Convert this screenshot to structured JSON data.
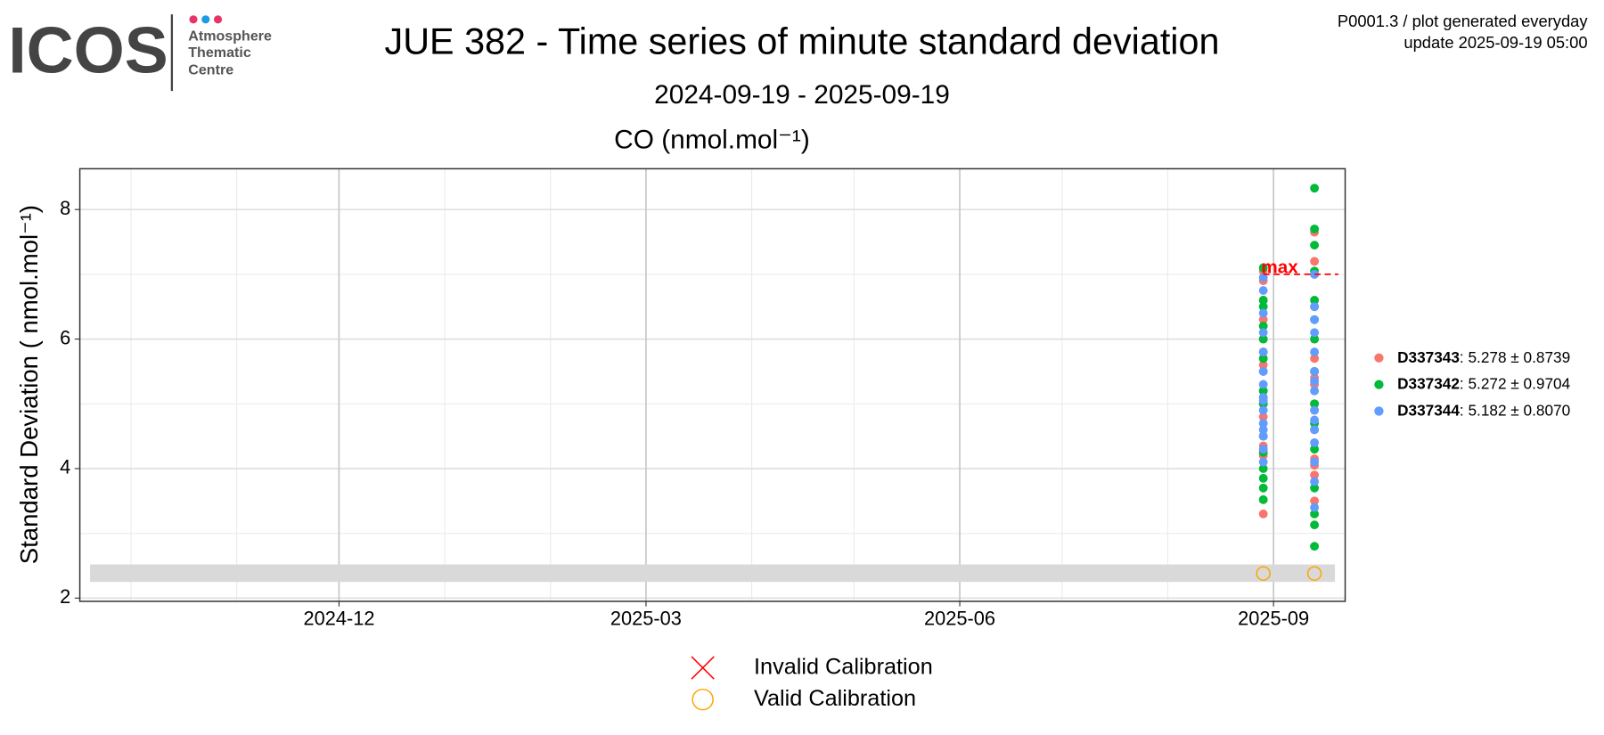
{
  "header": {
    "logo": "ICOS",
    "logo_lines": [
      "Atmosphere",
      "Thematic",
      "Centre"
    ],
    "info": [
      "P0001.3 / plot generated everyday",
      "update  2025-09-19 05:00"
    ]
  },
  "chart_data": {
    "type": "scatter",
    "title": "JUE 382 - Time series of minute standard deviation",
    "subtitle": "2024-09-19 - 2025-09-19",
    "panel_title": "CO (nmol.mol⁻¹)",
    "y_label": "Standard Deviation ( nmol.mol⁻¹)",
    "xlim": [
      "2024-09-16",
      "2025-09-22"
    ],
    "xticks": [
      {
        "value": "2024-12-01",
        "label": "2024-12"
      },
      {
        "value": "2025-03-01",
        "label": "2025-03"
      },
      {
        "value": "2025-06-01",
        "label": "2025-06"
      },
      {
        "value": "2025-09-01",
        "label": "2025-09"
      }
    ],
    "x_minor_ticks": [
      "2024-10-01",
      "2024-11-01",
      "2025-01-01",
      "2025-02-01",
      "2025-04-01",
      "2025-05-01",
      "2025-07-01",
      "2025-08-01"
    ],
    "ylim": [
      1.95,
      8.63
    ],
    "yticks": [
      2,
      4,
      6,
      8
    ],
    "y_minor_ticks": [
      3,
      5,
      7
    ],
    "grid": true,
    "reference_band": {
      "x": [
        "2024-09-19",
        "2025-09-19"
      ],
      "values": [
        2.25,
        2.52
      ],
      "color": "#d9d9d9"
    },
    "max_line": {
      "label": "max",
      "value": 7.0,
      "x": [
        "2025-08-29",
        "2025-09-20"
      ],
      "color": "#ff0000"
    },
    "series": [
      {
        "name": "D337343",
        "legend_label": ": 5.278 ± 0.8739",
        "color": "#F8766D",
        "x": [
          "2025-08-29",
          "2025-08-29",
          "2025-08-29",
          "2025-08-29",
          "2025-08-29",
          "2025-08-29",
          "2025-08-29",
          "2025-08-29",
          "2025-08-29",
          "2025-08-29",
          "2025-08-29",
          "2025-08-29",
          "2025-08-29",
          "2025-08-29",
          "2025-08-29",
          "2025-09-13",
          "2025-09-13",
          "2025-09-13",
          "2025-09-13",
          "2025-09-13",
          "2025-09-13",
          "2025-09-13",
          "2025-09-13",
          "2025-09-13",
          "2025-09-13",
          "2025-09-13",
          "2025-09-13",
          "2025-09-13",
          "2025-09-13",
          "2025-09-13"
        ],
        "values": [
          3.3,
          4.2,
          4.5,
          4.8,
          5.0,
          5.2,
          5.5,
          5.8,
          6.0,
          6.3,
          6.6,
          6.9,
          7.05,
          4.35,
          5.6,
          3.5,
          4.05,
          4.15,
          4.6,
          5.0,
          5.4,
          5.7,
          6.0,
          6.5,
          7.0,
          7.2,
          7.65,
          4.9,
          5.3,
          3.9
        ]
      },
      {
        "name": "D337342",
        "legend_label": ": 5.272 ± 0.9704",
        "color": "#00BA38",
        "x": [
          "2025-08-29",
          "2025-08-29",
          "2025-08-29",
          "2025-08-29",
          "2025-08-29",
          "2025-08-29",
          "2025-08-29",
          "2025-08-29",
          "2025-08-29",
          "2025-08-29",
          "2025-08-29",
          "2025-08-29",
          "2025-08-29",
          "2025-08-29",
          "2025-08-29",
          "2025-09-13",
          "2025-09-13",
          "2025-09-13",
          "2025-09-13",
          "2025-09-13",
          "2025-09-13",
          "2025-09-13",
          "2025-09-13",
          "2025-09-13",
          "2025-09-13",
          "2025-09-13",
          "2025-09-13",
          "2025-09-13",
          "2025-09-13",
          "2025-09-13"
        ],
        "values": [
          3.52,
          3.7,
          3.85,
          4.0,
          4.5,
          5.0,
          5.1,
          5.2,
          5.7,
          6.0,
          6.2,
          6.5,
          6.6,
          7.1,
          4.25,
          2.8,
          3.13,
          3.3,
          3.7,
          4.3,
          4.7,
          5.0,
          5.5,
          6.0,
          6.3,
          6.6,
          7.05,
          7.45,
          7.7,
          8.33
        ]
      },
      {
        "name": "D337344",
        "legend_label": ": 5.182 ± 0.8070",
        "color": "#619CFF",
        "x": [
          "2025-08-29",
          "2025-08-29",
          "2025-08-29",
          "2025-08-29",
          "2025-08-29",
          "2025-08-29",
          "2025-08-29",
          "2025-08-29",
          "2025-08-29",
          "2025-08-29",
          "2025-08-29",
          "2025-08-29",
          "2025-08-29",
          "2025-08-29",
          "2025-08-29",
          "2025-09-13",
          "2025-09-13",
          "2025-09-13",
          "2025-09-13",
          "2025-09-13",
          "2025-09-13",
          "2025-09-13",
          "2025-09-13",
          "2025-09-13",
          "2025-09-13",
          "2025-09-13",
          "2025-09-13",
          "2025-09-13",
          "2025-09-13",
          "2025-09-13"
        ],
        "values": [
          4.1,
          4.3,
          4.5,
          4.7,
          4.9,
          5.1,
          5.3,
          5.5,
          5.8,
          6.1,
          6.4,
          6.75,
          6.95,
          4.6,
          5.05,
          3.4,
          3.8,
          4.1,
          4.4,
          4.6,
          4.9,
          5.2,
          5.5,
          5.8,
          6.1,
          6.5,
          7.0,
          4.75,
          5.35,
          6.3
        ]
      }
    ],
    "calibrations": [
      {
        "name": "Invalid Calibration",
        "shape": "cross",
        "color": "#FF0000",
        "x": [],
        "values": []
      },
      {
        "name": "Valid Calibration",
        "shape": "circle",
        "color": "#FFA500",
        "x": [
          "2025-08-29",
          "2025-09-13"
        ],
        "values": [
          2.38,
          2.38
        ]
      }
    ]
  }
}
